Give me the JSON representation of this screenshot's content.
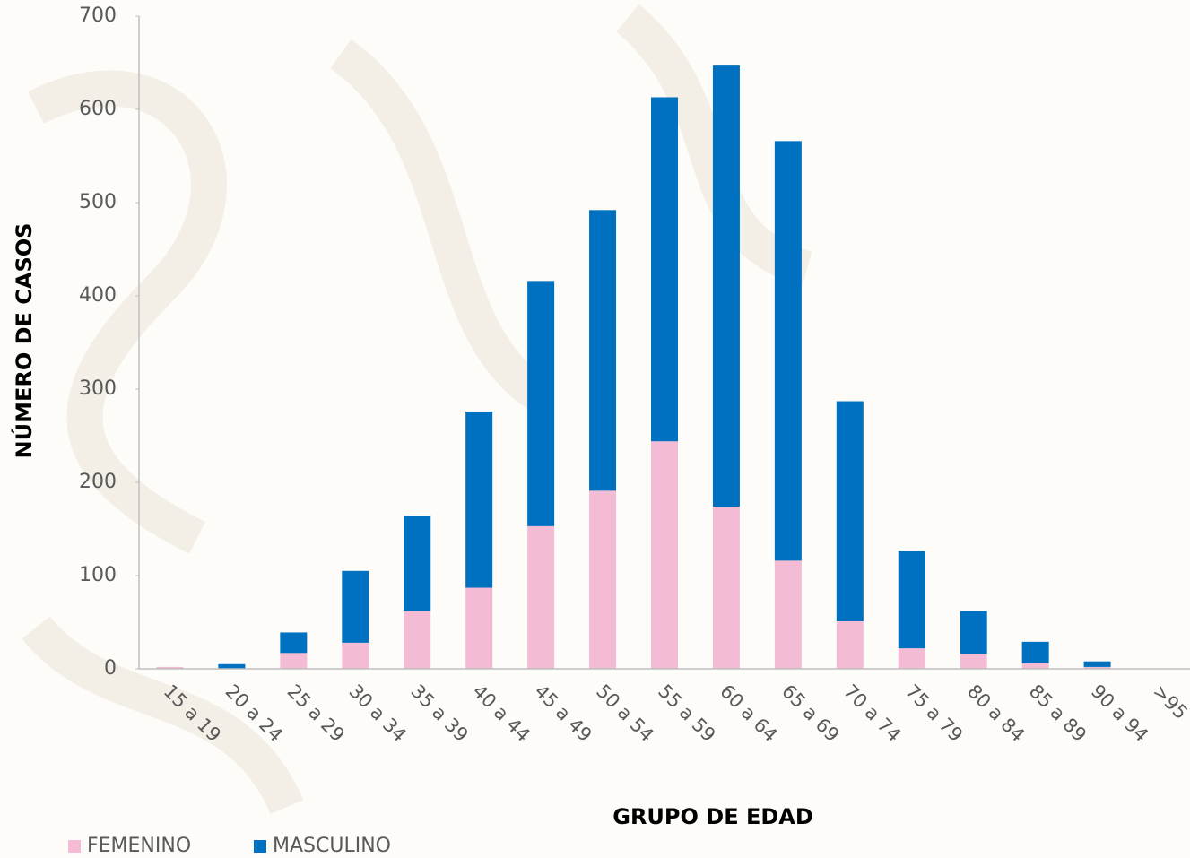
{
  "chart_data": {
    "type": "stacked_bar",
    "x_label": "GRUPO DE EDAD",
    "y_label": "NÚMERO DE CASOS",
    "categories": [
      "15 a 19",
      "20 a 24",
      "25 a 29",
      "30 a 34",
      "35 a 39",
      "40 a 44",
      "45 a 49",
      "50 a 54",
      "55 a 59",
      "60 a 64",
      "65 a 69",
      "70 a 74",
      "75 a 79",
      "80 a 84",
      "85 a 89",
      "90 a 94",
      ">95"
    ],
    "series": [
      {
        "name": "FEMENINO",
        "color": "#f4bcd4",
        "values": [
          2,
          0,
          17,
          28,
          62,
          87,
          153,
          191,
          244,
          174,
          116,
          51,
          22,
          16,
          6,
          2,
          0
        ]
      },
      {
        "name": "MASCULINO",
        "color": "#0070c0",
        "values": [
          0,
          5,
          22,
          77,
          102,
          189,
          263,
          301,
          369,
          473,
          450,
          236,
          104,
          46,
          23,
          6,
          0
        ]
      }
    ],
    "ylim": [
      0,
      700
    ],
    "yticks": [
      0,
      100,
      200,
      300,
      400,
      500,
      600,
      700
    ],
    "legend": "bottom-left"
  }
}
